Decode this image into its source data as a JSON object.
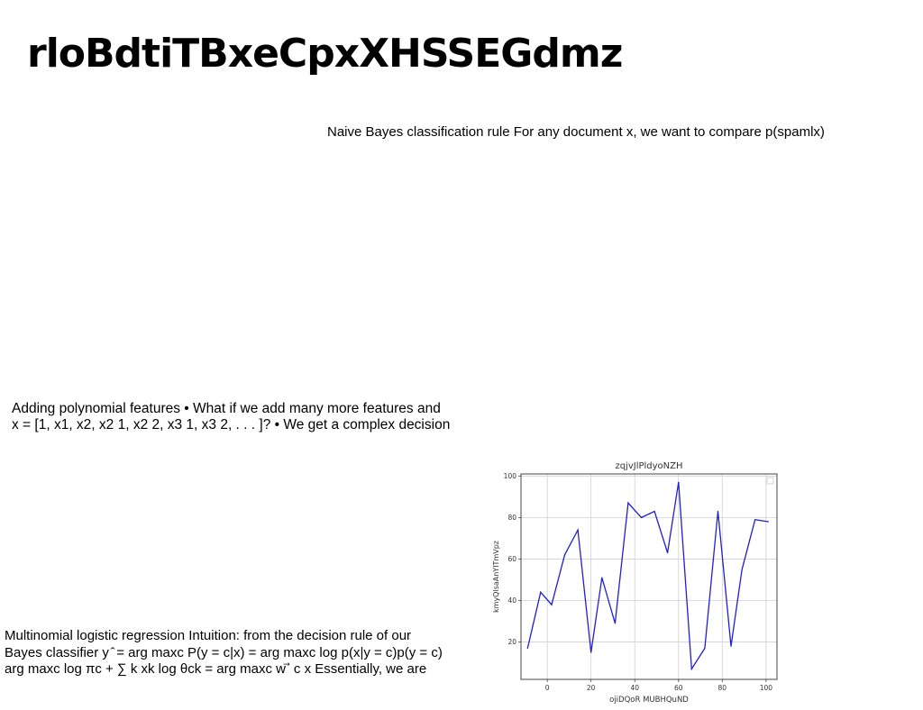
{
  "page": {
    "title": "rloBdtiTBxeCpxXHSSEGdmz"
  },
  "texts": {
    "naive_bayes": "Naive Bayes classification rule For any document x, we want to compare p(spamlx)",
    "polynomial_line1": "Adding polynomial features • What if we add many more features and",
    "polynomial_line2": "x = [1, x1, x2, x2 1, x2 2, x3 1, x3 2, . . . ]? • We get a complex decision",
    "logistic_line1": "Multinomial logistic regression Intuition: from the decision rule of our",
    "logistic_line2": "Bayes classifier y ̂ = arg maxc P(y = c|x) = arg maxc log p(x|y = c)p(y = c)",
    "logistic_line3": "arg maxc log πc + ∑ k xk log θck = arg maxc w ⃗ c x Essentially, we are"
  },
  "chart_data": {
    "type": "line",
    "title": "zqjvJlPldyoNZH",
    "xlabel": "ojiDQoR MUBHQuND",
    "ylabel": "kmyQlsaAnYITmVpz",
    "xlim": [
      -12,
      105
    ],
    "ylim": [
      2,
      101
    ],
    "xticks": [
      0,
      20,
      40,
      60,
      80,
      100
    ],
    "yticks": [
      20,
      40,
      60,
      80,
      100
    ],
    "grid": true,
    "legend": "top-right",
    "line_color": "#1f1fd6",
    "series": [
      {
        "x": [
          -9,
          -3,
          2,
          8,
          14,
          20,
          25,
          31,
          37,
          43,
          49,
          55,
          60,
          66,
          72,
          78,
          84,
          89,
          95,
          101
        ],
        "y": [
          17,
          44,
          38,
          62,
          74,
          15,
          51,
          29,
          87,
          80,
          83,
          63,
          97,
          7,
          17,
          83,
          18,
          55,
          79,
          78
        ]
      }
    ]
  }
}
